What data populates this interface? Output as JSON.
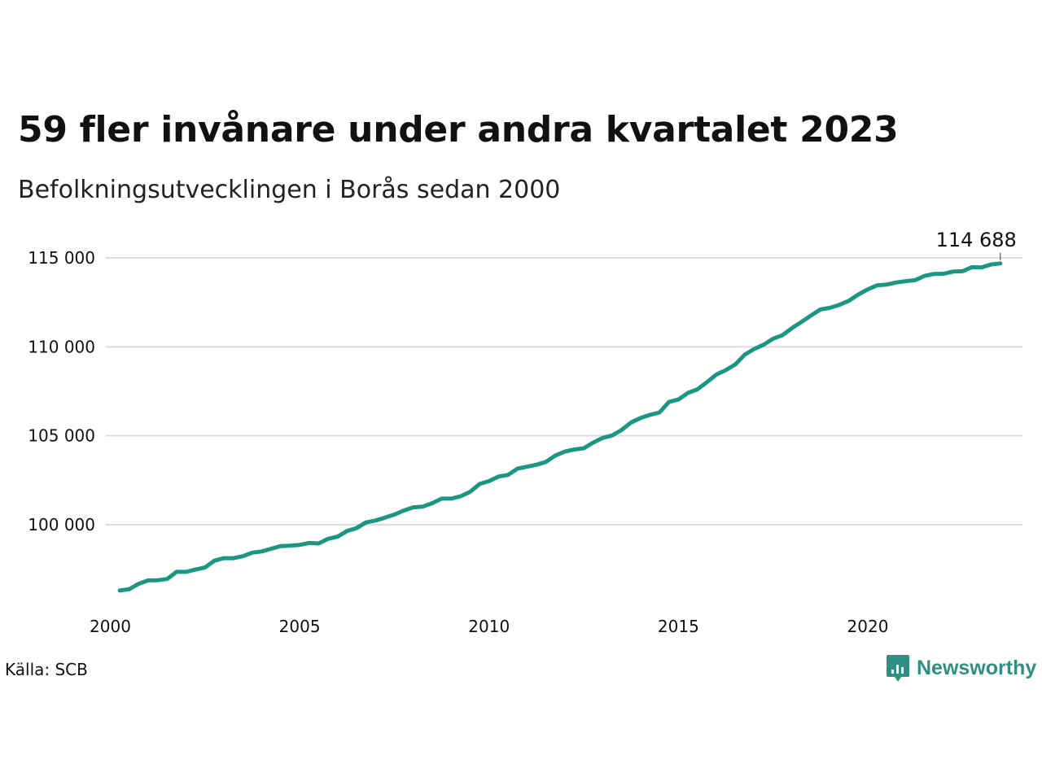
{
  "title": "59 fler invånare under andra kvartalet 2023",
  "subtitle": "Befolkningsutvecklingen i Borås sedan 2000",
  "source": "Källa: SCB",
  "brand": {
    "name": "Newsworthy",
    "icon": "newsworthy-logo-icon",
    "color": "#2f8f83"
  },
  "colors": {
    "line": "#1a9682",
    "grid": "#dddddd"
  },
  "chart_data": {
    "type": "line",
    "title": "59 fler invånare under andra kvartalet 2023",
    "subtitle": "Befolkningsutvecklingen i Borås sedan 2000",
    "xlabel": "",
    "ylabel": "",
    "xlim": [
      2000,
      2024.5
    ],
    "ylim": [
      96000,
      116000
    ],
    "grid": true,
    "x_ticks": [
      2000,
      2005,
      2010,
      2015,
      2020
    ],
    "x_tick_labels": [
      "2000",
      "2005",
      "2010",
      "2015",
      "2020"
    ],
    "y_ticks": [
      100000,
      105000,
      110000,
      115000
    ],
    "y_tick_labels": [
      "100 000",
      "105 000",
      "110 000",
      "115 000"
    ],
    "end_label": "114 688",
    "series": [
      {
        "x": [
          2000.25,
          2000.5,
          2000.75,
          2001.0,
          2001.25,
          2001.5,
          2001.75,
          2002.0,
          2002.25,
          2002.5,
          2002.75,
          2003.0,
          2003.25,
          2003.5,
          2003.75,
          2004.0,
          2004.25,
          2004.5,
          2004.75,
          2005.0,
          2005.25,
          2005.5,
          2005.75,
          2006.0,
          2006.25,
          2006.5,
          2006.75,
          2007.0,
          2007.25,
          2007.5,
          2007.75,
          2008.0,
          2008.25,
          2008.5,
          2008.75,
          2009.0,
          2009.25,
          2009.5,
          2009.75,
          2010.0,
          2010.25,
          2010.5,
          2010.75,
          2011.0,
          2011.25,
          2011.5,
          2011.75,
          2012.0,
          2012.25,
          2012.5,
          2012.75,
          2013.0,
          2013.25,
          2013.5,
          2013.75,
          2014.0,
          2014.25,
          2014.5,
          2014.75,
          2015.0,
          2015.25,
          2015.5,
          2015.75,
          2016.0,
          2016.25,
          2016.5,
          2016.75,
          2017.0,
          2017.25,
          2017.5,
          2017.75,
          2018.0,
          2018.25,
          2018.5,
          2018.75,
          2019.0,
          2019.25,
          2019.5,
          2019.75,
          2020.0,
          2020.25,
          2020.5,
          2020.75,
          2021.0,
          2021.25,
          2021.5,
          2021.75,
          2022.0,
          2022.25,
          2022.5,
          2022.75,
          2023.0,
          2023.25,
          2023.5
        ],
        "values": [
          96300,
          96380,
          96680,
          96870,
          96880,
          96950,
          97350,
          97350,
          97480,
          97600,
          97980,
          98120,
          98120,
          98230,
          98430,
          98500,
          98650,
          98800,
          98820,
          98870,
          98970,
          98950,
          99210,
          99330,
          99650,
          99810,
          100130,
          100240,
          100400,
          100570,
          100800,
          100980,
          101020,
          101210,
          101470,
          101470,
          101600,
          101850,
          102290,
          102450,
          102710,
          102800,
          103150,
          103260,
          103370,
          103530,
          103890,
          104110,
          104230,
          104300,
          104620,
          104880,
          105020,
          105330,
          105750,
          106000,
          106180,
          106310,
          106900,
          107040,
          107410,
          107610,
          108010,
          108440,
          108690,
          109010,
          109560,
          109880,
          110120,
          110460,
          110660,
          111060,
          111400,
          111760,
          112100,
          112190,
          112360,
          112590,
          112940,
          113230,
          113460,
          113500,
          113620,
          113690,
          113750,
          113990,
          114100,
          114110,
          114230,
          114250,
          114480,
          114460,
          114629,
          114688
        ]
      }
    ]
  }
}
